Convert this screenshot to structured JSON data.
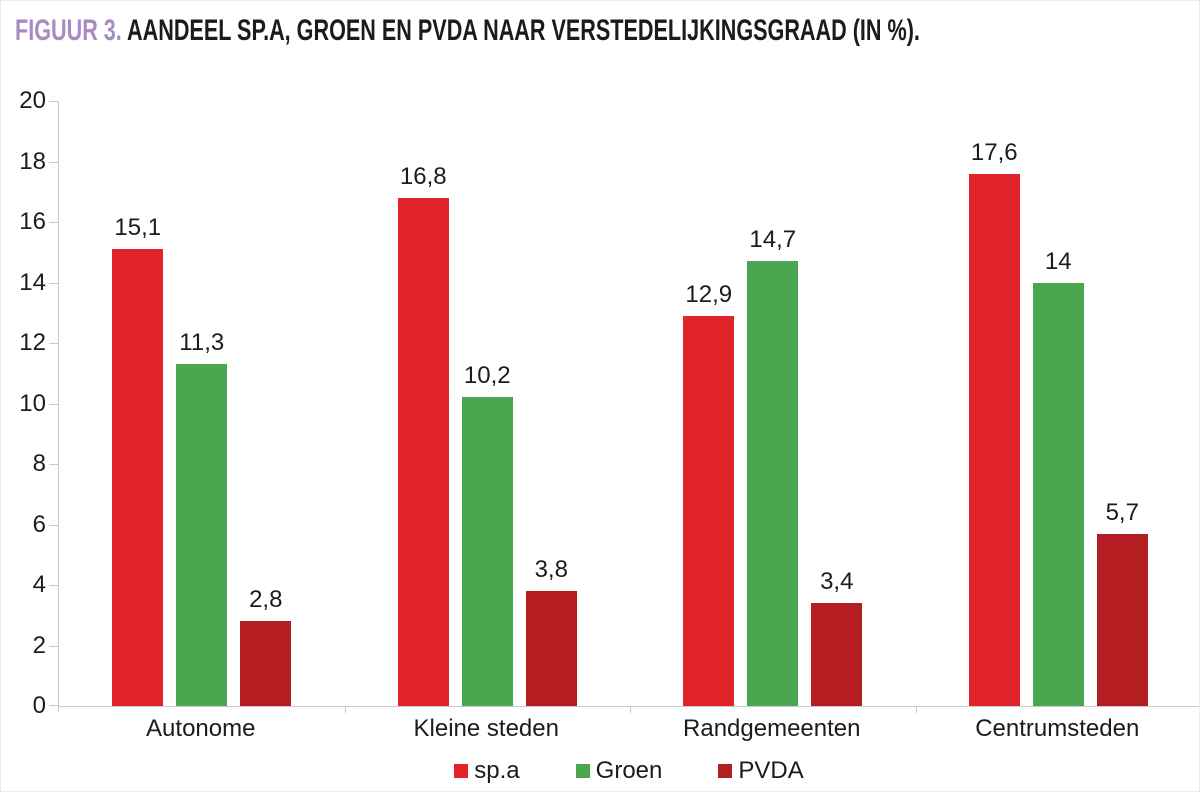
{
  "title": {
    "prefix": "FIGUUR 3.",
    "main": " AANDEEL SP.A, GROEN EN PVDA NAAR VERSTEDELIJKINGSGRAAD (IN %)."
  },
  "colors": {
    "title_prefix_purple": "#a78cc0",
    "title_text_black": "#1b1b1b",
    "axis_gray": "#c9c9c9",
    "label_black": "#1c1c1c",
    "spa_red": "#e0242a",
    "groen_green": "#4ba650",
    "pvda_dark_red": "#b41d21"
  },
  "chart_data": {
    "type": "bar",
    "title": "FIGUUR 3. AANDEEL SP.A, GROEN EN PVDA NAAR VERSTEDELIJKINGSGRAAD (IN %).",
    "categories": [
      "Autonome",
      "Kleine steden",
      "Randgemeenten",
      "Centrumsteden"
    ],
    "series": [
      {
        "name": "sp.a",
        "color": "#e0242a",
        "values": [
          15.1,
          16.8,
          12.9,
          17.6
        ]
      },
      {
        "name": "Groen",
        "color": "#4ba650",
        "values": [
          11.3,
          10.2,
          14.7,
          14
        ]
      },
      {
        "name": "PVDA",
        "color": "#b41d21",
        "values": [
          2.8,
          3.8,
          3.4,
          5.7
        ]
      }
    ],
    "xlabel": "",
    "ylabel": "",
    "ylim": [
      0,
      20
    ],
    "ytick_step": 2,
    "grid": false,
    "value_labels": true,
    "decimal_separator": ",",
    "legend_position": "bottom"
  }
}
